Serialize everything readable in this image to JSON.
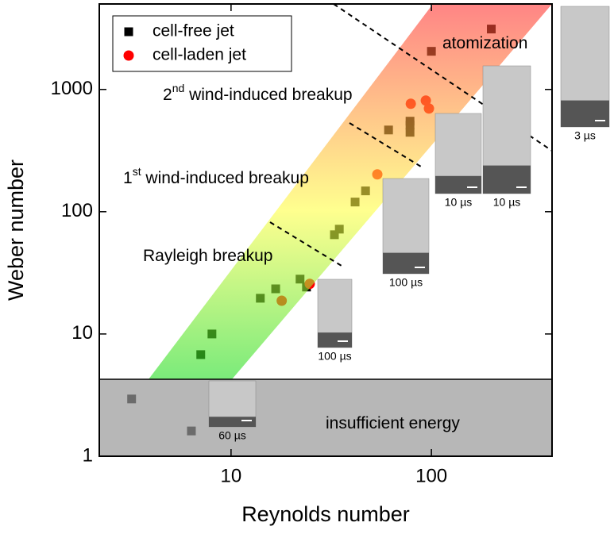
{
  "chart_data": {
    "type": "scatter",
    "x_label": "Reynolds number",
    "y_label": "Weber number",
    "x_scale": "log",
    "y_scale": "log",
    "xlim": [
      2.2,
      400
    ],
    "ylim": [
      1,
      5000
    ],
    "xticks": [
      10,
      100
    ],
    "yticks": [
      1,
      10,
      100,
      1000
    ],
    "legend": "upper left",
    "series": [
      {
        "name": "cell-free jet",
        "color": "#000000",
        "marker": "square",
        "x": [
          3.19,
          6.34,
          7.06,
          8.03,
          14.0,
          16.7,
          22.1,
          23.8,
          32.8,
          34.7,
          41.6,
          46.9,
          61.1,
          78.2,
          78.2,
          78.2,
          100,
          199
        ],
        "values": [
          2.94,
          1.61,
          6.78,
          10,
          19.6,
          23.4,
          28.1,
          24.2,
          64.8,
          72,
          120,
          148,
          466,
          446,
          510,
          550,
          2050,
          3118
        ]
      },
      {
        "name": "cell-laden jet",
        "color": "#ff0000",
        "marker": "circle",
        "x": [
          17.9,
          24.7,
          53.7,
          78.9,
          93.8,
          97.2
        ],
        "values": [
          18.7,
          25.7,
          202,
          764,
          811,
          698
        ]
      }
    ],
    "annotations": [
      [
        "atomization"
      ],
      [
        "2",
        "nd",
        " wind-induced breakup"
      ],
      [
        "1",
        "st",
        " wind-induced breakup"
      ],
      [
        "Rayleigh breakup"
      ],
      [
        "insufficient energy"
      ]
    ],
    "insets": [
      "60 µs",
      "100 µs",
      "100 µs",
      "10 µs",
      "10 µs",
      "3 µs"
    ]
  }
}
